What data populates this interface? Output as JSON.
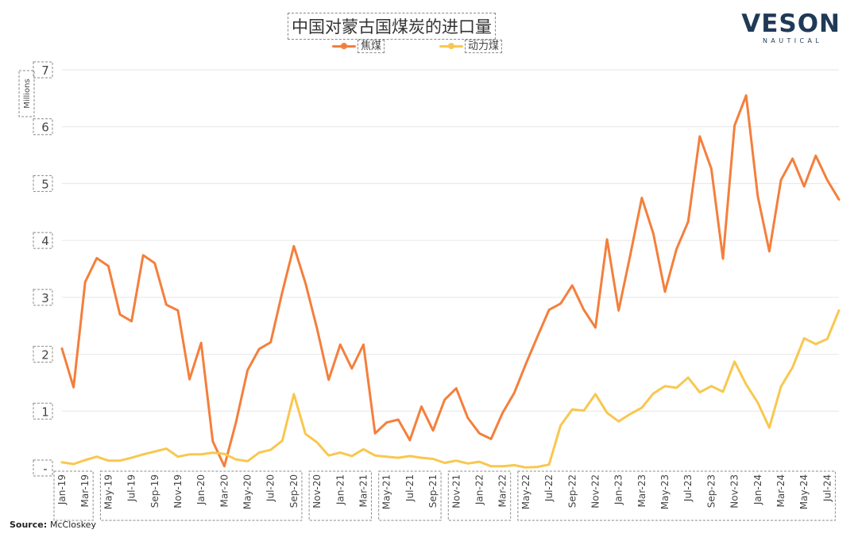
{
  "title": "中国对蒙古国煤炭的进口量",
  "logo": {
    "main": "VESON",
    "sub": "NAUTICAL"
  },
  "source": {
    "label": "Source:",
    "value": "McCloskey"
  },
  "chart_data": {
    "type": "line",
    "title": "中国对蒙古国煤炭的进口量",
    "ylabel": "Millions",
    "xlabel": "",
    "ylim": [
      0,
      7
    ],
    "yticks": [
      {
        "v": 0,
        "label": "-"
      },
      {
        "v": 1,
        "label": "1"
      },
      {
        "v": 2,
        "label": "2"
      },
      {
        "v": 3,
        "label": "3"
      },
      {
        "v": 4,
        "label": "4"
      },
      {
        "v": 5,
        "label": "5"
      },
      {
        "v": 6,
        "label": "6"
      },
      {
        "v": 7,
        "label": "7"
      }
    ],
    "grid": true,
    "legend_position": "top-center",
    "x": [
      "2019-01",
      "2019-02",
      "2019-03",
      "2019-04",
      "2019-05",
      "2019-06",
      "2019-07",
      "2019-08",
      "2019-09",
      "2019-10",
      "2019-11",
      "2019-12",
      "2020-01",
      "2020-02",
      "2020-03",
      "2020-04",
      "2020-05",
      "2020-06",
      "2020-07",
      "2020-08",
      "2020-09",
      "2020-10",
      "2020-11",
      "2020-12",
      "2021-01",
      "2021-02",
      "2021-03",
      "2021-04",
      "2021-05",
      "2021-06",
      "2021-07",
      "2021-08",
      "2021-09",
      "2021-10",
      "2021-11",
      "2021-12",
      "2022-01",
      "2022-02",
      "2022-03",
      "2022-04",
      "2022-05",
      "2022-06",
      "2022-07",
      "2022-08",
      "2022-09",
      "2022-10",
      "2022-11",
      "2022-12",
      "2023-01",
      "2023-02",
      "2023-03",
      "2023-04",
      "2023-05",
      "2023-06",
      "2023-07",
      "2023-08",
      "2023-09",
      "2023-10",
      "2023-11",
      "2023-12",
      "2024-01",
      "2024-02",
      "2024-03",
      "2024-04",
      "2024-05",
      "2024-06",
      "2024-07",
      "2024-08"
    ],
    "tick_labels": [
      "Jan-19",
      "Mar-19",
      "May-19",
      "Jul-19",
      "Sep-19",
      "Nov-19",
      "Jan-20",
      "Mar-20",
      "May-20",
      "Jul-20",
      "Sep-20",
      "Nov-20",
      "Jan-21",
      "Mar-21",
      "May-21",
      "Jul-21",
      "Sep-21",
      "Nov-21",
      "Jan-22",
      "Mar-22",
      "May-22",
      "Jul-22",
      "Sep-22",
      "Nov-22",
      "Jan-23",
      "Mar-23",
      "May-23",
      "Jul-23",
      "Sep-23",
      "Nov-23",
      "Jan-24",
      "Mar-24",
      "May-24",
      "Jul-24"
    ],
    "tick_groups": [
      {
        "start": 0,
        "end": 1
      },
      {
        "start": 2,
        "end": 10
      },
      {
        "start": 11,
        "end": 13
      },
      {
        "start": 14,
        "end": 16
      },
      {
        "start": 17,
        "end": 19
      },
      {
        "start": 20,
        "end": 33
      }
    ],
    "series": [
      {
        "name": "焦煤",
        "color": "#F47F3C",
        "values": [
          2.1,
          1.42,
          3.27,
          3.69,
          3.55,
          2.7,
          2.58,
          3.74,
          3.6,
          2.87,
          2.77,
          1.56,
          2.2,
          0.47,
          0.03,
          0.8,
          1.72,
          2.09,
          2.21,
          3.09,
          3.9,
          3.25,
          2.45,
          1.55,
          2.17,
          1.75,
          2.17,
          0.61,
          0.8,
          0.85,
          0.49,
          1.08,
          0.66,
          1.2,
          1.4,
          0.88,
          0.61,
          0.51,
          0.97,
          1.32,
          1.83,
          2.31,
          2.78,
          2.89,
          3.21,
          2.78,
          2.47,
          4.02,
          2.77,
          3.74,
          4.75,
          4.12,
          3.1,
          3.85,
          4.33,
          5.83,
          5.26,
          3.68,
          6.02,
          6.55,
          4.78,
          3.81,
          5.06,
          5.44,
          4.95,
          5.49,
          5.06,
          4.72
        ]
      },
      {
        "name": "动力煤",
        "color": "#F9C74F",
        "values": [
          0.1,
          0.07,
          0.14,
          0.2,
          0.13,
          0.13,
          0.18,
          0.24,
          0.29,
          0.34,
          0.2,
          0.24,
          0.24,
          0.27,
          0.25,
          0.15,
          0.12,
          0.27,
          0.32,
          0.48,
          1.3,
          0.6,
          0.45,
          0.22,
          0.27,
          0.21,
          0.33,
          0.22,
          0.2,
          0.18,
          0.21,
          0.18,
          0.16,
          0.09,
          0.13,
          0.08,
          0.11,
          0.03,
          0.03,
          0.05,
          0.01,
          0.02,
          0.06,
          0.75,
          1.03,
          1.01,
          1.3,
          0.97,
          0.82,
          0.95,
          1.06,
          1.31,
          1.44,
          1.41,
          1.59,
          1.33,
          1.44,
          1.34,
          1.87,
          1.47,
          1.15,
          0.71,
          1.43,
          1.77,
          2.28,
          2.18,
          2.27,
          2.77
        ]
      }
    ]
  }
}
